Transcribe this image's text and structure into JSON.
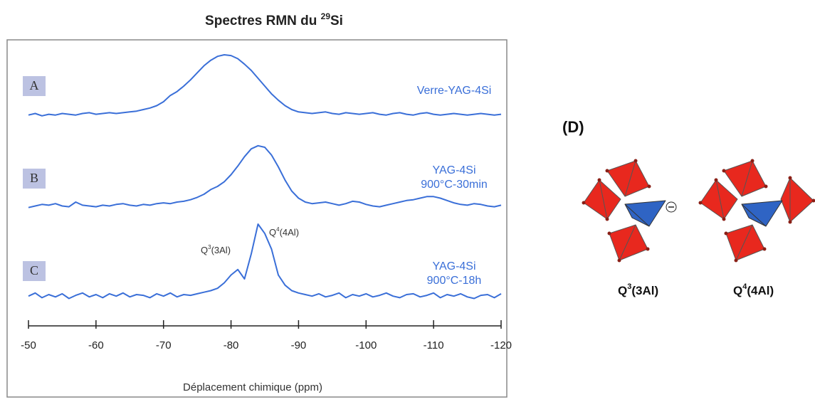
{
  "chart_data": {
    "type": "line",
    "title": {
      "text": "Spectres RMN du ",
      "sup": "29",
      "rest": "Si"
    },
    "x_label": "Déplacement chimique (ppm)",
    "x": [
      -50,
      -51,
      -52,
      -53,
      -54,
      -55,
      -56,
      -57,
      -58,
      -59,
      -60,
      -61,
      -62,
      -63,
      -64,
      -65,
      -66,
      -67,
      -68,
      -69,
      -70,
      -71,
      -72,
      -73,
      -74,
      -75,
      -76,
      -77,
      -78,
      -79,
      -80,
      -81,
      -82,
      -83,
      -84,
      -85,
      -86,
      -87,
      -88,
      -89,
      -90,
      -91,
      -92,
      -93,
      -94,
      -95,
      -96,
      -97,
      -98,
      -99,
      -100,
      -101,
      -102,
      -103,
      -104,
      -105,
      -106,
      -107,
      -108,
      -109,
      -110,
      -111,
      -112,
      -113,
      -114,
      -115,
      -116,
      -117,
      -118,
      -119,
      -120
    ],
    "xlim": [
      -50,
      -120
    ],
    "xticks": [
      -50,
      -60,
      -70,
      -80,
      -90,
      -100,
      -110,
      -120
    ],
    "ylim": [
      0,
      1
    ],
    "series": [
      {
        "name": "A",
        "label": [
          "Verre-YAG-4Si"
        ],
        "color": "#3a6fd8",
        "values": [
          0.03,
          0.05,
          0.02,
          0.04,
          0.03,
          0.05,
          0.04,
          0.03,
          0.05,
          0.06,
          0.04,
          0.05,
          0.06,
          0.05,
          0.06,
          0.07,
          0.08,
          0.1,
          0.12,
          0.15,
          0.2,
          0.28,
          0.33,
          0.4,
          0.48,
          0.57,
          0.66,
          0.73,
          0.78,
          0.8,
          0.79,
          0.75,
          0.68,
          0.6,
          0.5,
          0.4,
          0.3,
          0.22,
          0.15,
          0.1,
          0.07,
          0.06,
          0.05,
          0.06,
          0.07,
          0.05,
          0.04,
          0.06,
          0.05,
          0.04,
          0.05,
          0.06,
          0.04,
          0.03,
          0.05,
          0.06,
          0.04,
          0.03,
          0.05,
          0.06,
          0.04,
          0.03,
          0.04,
          0.05,
          0.04,
          0.03,
          0.04,
          0.05,
          0.04,
          0.03,
          0.04
        ]
      },
      {
        "name": "B",
        "label": [
          "YAG-4Si",
          "900°C-30min"
        ],
        "color": "#3a6fd8",
        "values": [
          0.03,
          0.05,
          0.07,
          0.06,
          0.08,
          0.05,
          0.04,
          0.1,
          0.06,
          0.05,
          0.04,
          0.06,
          0.05,
          0.07,
          0.08,
          0.06,
          0.05,
          0.07,
          0.06,
          0.08,
          0.09,
          0.08,
          0.1,
          0.11,
          0.13,
          0.16,
          0.2,
          0.26,
          0.3,
          0.36,
          0.45,
          0.56,
          0.68,
          0.78,
          0.82,
          0.8,
          0.7,
          0.55,
          0.38,
          0.24,
          0.15,
          0.1,
          0.08,
          0.09,
          0.1,
          0.08,
          0.06,
          0.08,
          0.11,
          0.1,
          0.07,
          0.05,
          0.04,
          0.06,
          0.08,
          0.1,
          0.12,
          0.13,
          0.15,
          0.17,
          0.17,
          0.15,
          0.12,
          0.09,
          0.07,
          0.06,
          0.08,
          0.07,
          0.05,
          0.04,
          0.06
        ]
      },
      {
        "name": "C",
        "label": [
          "YAG-4Si",
          "900°C-18h"
        ],
        "color": "#3a6fd8",
        "values": [
          0.08,
          0.12,
          0.06,
          0.1,
          0.07,
          0.11,
          0.05,
          0.09,
          0.12,
          0.07,
          0.1,
          0.06,
          0.11,
          0.08,
          0.12,
          0.07,
          0.1,
          0.09,
          0.06,
          0.11,
          0.08,
          0.12,
          0.07,
          0.1,
          0.09,
          0.11,
          0.13,
          0.15,
          0.18,
          0.25,
          0.35,
          0.42,
          0.3,
          0.62,
          1.0,
          0.88,
          0.68,
          0.35,
          0.22,
          0.15,
          0.12,
          0.1,
          0.08,
          0.11,
          0.07,
          0.09,
          0.12,
          0.06,
          0.1,
          0.08,
          0.11,
          0.07,
          0.09,
          0.12,
          0.08,
          0.06,
          0.1,
          0.11,
          0.07,
          0.09,
          0.12,
          0.06,
          0.1,
          0.08,
          0.11,
          0.07,
          0.05,
          0.09,
          0.1,
          0.06,
          0.11
        ]
      }
    ],
    "annotations": [
      {
        "base": "Q",
        "sup": "3",
        "rest": "(3Al)"
      },
      {
        "base": "Q",
        "sup": "4",
        "rest": "(4Al)"
      }
    ]
  },
  "diagram": {
    "label": "(D)",
    "structures": [
      {
        "base": "Q",
        "sup": "3",
        "rest": "(3Al)"
      },
      {
        "base": "Q",
        "sup": "4",
        "rest": "(4Al)"
      }
    ]
  }
}
